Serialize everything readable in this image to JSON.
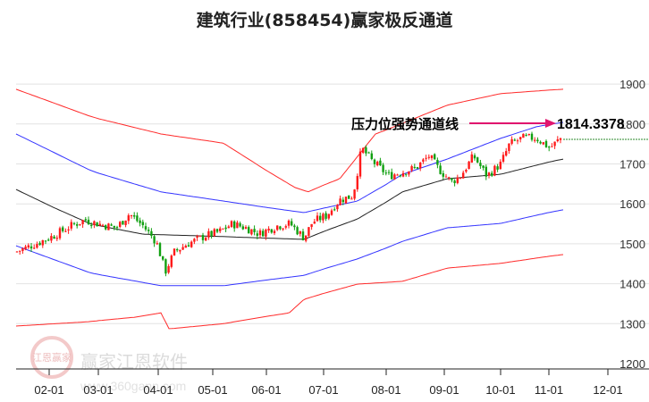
{
  "chart_data": {
    "type": "candlestick",
    "title": "建筑行业(858454)赢家极反通道",
    "xlabel": "",
    "ylabel": "",
    "x_unit": "month (2.0 = 02-01)",
    "ylim": [
      1200,
      1900
    ],
    "y_ticks": [
      1200,
      1300,
      1400,
      1500,
      1600,
      1700,
      1800,
      1900
    ],
    "x_ticks": [
      {
        "m": 2,
        "label": "02-01"
      },
      {
        "m": 3,
        "label": "03-01"
      },
      {
        "m": 4,
        "label": "04-01"
      },
      {
        "m": 5,
        "label": "05-01"
      },
      {
        "m": 6,
        "label": "06-01"
      },
      {
        "m": 7,
        "label": "07-01"
      },
      {
        "m": 8,
        "label": "08-01"
      },
      {
        "m": 9,
        "label": "09-01"
      },
      {
        "m": 10,
        "label": "10-01"
      },
      {
        "m": 11,
        "label": "11-01"
      },
      {
        "m": 12,
        "label": "12-01"
      }
    ],
    "price_path": [
      [
        1.33,
        1480
      ],
      [
        1.73,
        1500
      ],
      [
        2.09,
        1520
      ],
      [
        2.45,
        1545
      ],
      [
        2.73,
        1560
      ],
      [
        3.0,
        1550
      ],
      [
        3.3,
        1540
      ],
      [
        3.52,
        1575
      ],
      [
        3.75,
        1545
      ],
      [
        3.97,
        1505
      ],
      [
        4.13,
        1430
      ],
      [
        4.3,
        1480
      ],
      [
        4.54,
        1500
      ],
      [
        4.87,
        1520
      ],
      [
        5.12,
        1530
      ],
      [
        5.37,
        1550
      ],
      [
        5.62,
        1540
      ],
      [
        5.87,
        1525
      ],
      [
        6.19,
        1545
      ],
      [
        6.42,
        1550
      ],
      [
        6.66,
        1515
      ],
      [
        6.81,
        1555
      ],
      [
        7.04,
        1570
      ],
      [
        7.26,
        1610
      ],
      [
        7.47,
        1620
      ],
      [
        7.61,
        1740
      ],
      [
        7.76,
        1710
      ],
      [
        7.9,
        1690
      ],
      [
        8.05,
        1670
      ],
      [
        8.28,
        1680
      ],
      [
        8.51,
        1690
      ],
      [
        8.74,
        1720
      ],
      [
        8.89,
        1690
      ],
      [
        9.13,
        1655
      ],
      [
        9.29,
        1670
      ],
      [
        9.52,
        1720
      ],
      [
        9.76,
        1670
      ],
      [
        10.0,
        1700
      ],
      [
        10.19,
        1750
      ],
      [
        10.46,
        1765
      ],
      [
        10.74,
        1765
      ],
      [
        11.02,
        1740
      ],
      [
        11.24,
        1770
      ]
    ],
    "series": [
      {
        "name": "upper-red",
        "color": "#ff2a2a",
        "points": [
          [
            1.33,
            1887
          ],
          [
            2.82,
            1820
          ],
          [
            4.05,
            1775
          ],
          [
            5.2,
            1752
          ],
          [
            6.5,
            1641
          ],
          [
            6.73,
            1630
          ],
          [
            7.26,
            1663
          ],
          [
            7.83,
            1775
          ],
          [
            9.05,
            1847
          ],
          [
            10.0,
            1876
          ],
          [
            11.24,
            1887
          ]
        ]
      },
      {
        "name": "upper-blue",
        "color": "#3434ff",
        "points": [
          [
            1.33,
            1775
          ],
          [
            2.82,
            1685
          ],
          [
            4.05,
            1630
          ],
          [
            5.2,
            1607
          ],
          [
            6.66,
            1578
          ],
          [
            7.54,
            1607
          ],
          [
            8.28,
            1674
          ],
          [
            9.05,
            1712
          ],
          [
            10.0,
            1764
          ],
          [
            10.74,
            1793
          ],
          [
            11.24,
            1804
          ]
        ]
      },
      {
        "name": "middle",
        "color": "#222222",
        "points": [
          [
            1.33,
            1636
          ],
          [
            2.09,
            1591
          ],
          [
            2.82,
            1551
          ],
          [
            3.75,
            1524
          ],
          [
            5.2,
            1518
          ],
          [
            6.66,
            1511
          ],
          [
            7.54,
            1562
          ],
          [
            8.28,
            1630
          ],
          [
            9.05,
            1663
          ],
          [
            10.0,
            1674
          ],
          [
            11.24,
            1712
          ]
        ]
      },
      {
        "name": "lower-blue",
        "color": "#3434ff",
        "points": [
          [
            1.33,
            1495
          ],
          [
            2.82,
            1428
          ],
          [
            4.05,
            1395
          ],
          [
            5.2,
            1395
          ],
          [
            6.66,
            1421
          ],
          [
            7.54,
            1462
          ],
          [
            8.28,
            1506
          ],
          [
            9.05,
            1540
          ],
          [
            10.0,
            1551
          ],
          [
            11.24,
            1585
          ]
        ]
      },
      {
        "name": "lower-red",
        "color": "#ff2a2a",
        "points": [
          [
            1.33,
            1294
          ],
          [
            2.82,
            1305
          ],
          [
            3.6,
            1316
          ],
          [
            4.05,
            1327
          ],
          [
            4.2,
            1287
          ],
          [
            5.2,
            1300
          ],
          [
            6.4,
            1327
          ],
          [
            6.66,
            1361
          ],
          [
            7.54,
            1399
          ],
          [
            8.28,
            1406
          ],
          [
            9.05,
            1439
          ],
          [
            10.0,
            1451
          ],
          [
            11.24,
            1473
          ]
        ]
      }
    ],
    "annotation": {
      "label": "压力位强势通道线",
      "value": "1814.3378",
      "arrow_color": "#e0156e"
    },
    "colors": {
      "up": "#ff1a1a",
      "down": "#11a011",
      "grid": "#e2e2e2",
      "guide": "#2a8a2a"
    }
  },
  "watermark": {
    "brand": "赢家江恩软件",
    "url": "www.360gann.com",
    "seal": "江恩赢家"
  }
}
